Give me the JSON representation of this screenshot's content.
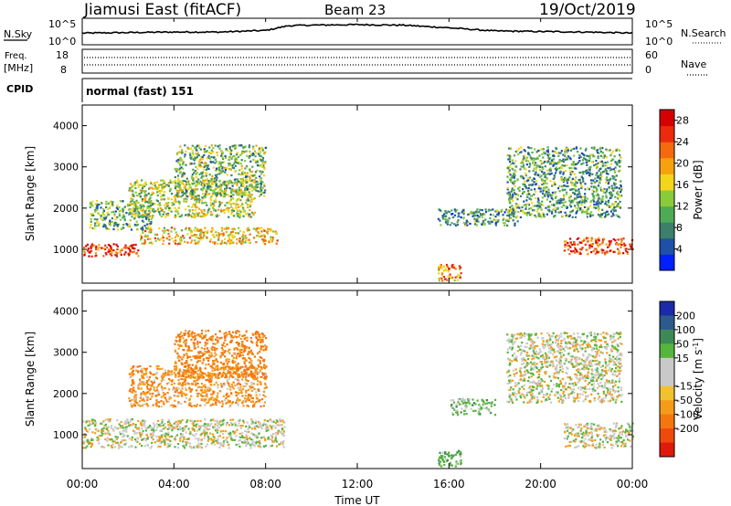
{
  "header": {
    "station": "Jiamusi East (fitACF)",
    "beam": "Beam 23",
    "date": "19/Oct/2019"
  },
  "panels": {
    "nsky": {
      "label": "N.Sky",
      "left_ticks": [
        "10^5",
        "10^0"
      ],
      "right_ticks": [
        "10^5",
        "10^0"
      ],
      "right_label": "N.Search",
      "trace_color": "#000000"
    },
    "freq": {
      "label_line1": "Freq.",
      "label_line2": "[MHz]",
      "left_ticks": [
        "18",
        "8"
      ],
      "right_ticks": [
        "60",
        "0"
      ],
      "right_label": "Nave"
    },
    "cpid": {
      "label": "CPID",
      "text": "normal (fast) 151"
    }
  },
  "axes": {
    "ylabel": "Slant Range [km]",
    "yticks": [
      "4000",
      "3000",
      "2000",
      "1000"
    ],
    "xticks": [
      "00:00",
      "04:00",
      "08:00",
      "12:00",
      "16:00",
      "20:00",
      "00:00"
    ],
    "xlabel": "Time UT"
  },
  "colorbars": {
    "power": {
      "label": "Power [dB]",
      "ticks": [
        "28",
        "24",
        "20",
        "16",
        "12",
        "8",
        "4"
      ],
      "colors": [
        "#0020ff",
        "#1e50a8",
        "#3c7f6a",
        "#4faa55",
        "#8acb3a",
        "#f3d51b",
        "#f6a20e",
        "#f46a0c",
        "#ec2a0c",
        "#d50000"
      ]
    },
    "velocity": {
      "label_main": "Velocity [m s",
      "label_sup": "-1",
      "label_end": "]",
      "ticks": [
        "200",
        "100",
        "50",
        "15",
        "-15",
        "-50",
        "-100",
        "-200"
      ],
      "colors": [
        "#1b2aa8",
        "#2d5a8c",
        "#3e8a57",
        "#56b53c",
        "#c9c9c9",
        "#c9c9c9",
        "#f2c12e",
        "#f49c1a",
        "#f3760f",
        "#ef4a0c",
        "#e01a0a"
      ]
    }
  },
  "chart_data": [
    {
      "type": "line",
      "title": "N.Sky / N.Search",
      "x": [
        0,
        2,
        4,
        6,
        8,
        9,
        10,
        12,
        14,
        16,
        18,
        20,
        22,
        24
      ],
      "series": [
        {
          "values": [
            2.2,
            2.3,
            2.4,
            2.4,
            2.7,
            3.6,
            3.7,
            3.8,
            3.7,
            3.2,
            2.6,
            2.5,
            2.4,
            2.2
          ]
        }
      ],
      "ylim": [
        0,
        5
      ],
      "xlim": [
        0,
        24
      ]
    },
    {
      "type": "heatmap",
      "title": "Power [dB]",
      "xlim": [
        0,
        24
      ],
      "ylim": [
        180,
        4500
      ],
      "regions": [
        {
          "x0": 0.0,
          "x1": 2.5,
          "y0": 850,
          "y1": 1150,
          "value": 26
        },
        {
          "x0": 2.5,
          "x1": 8.5,
          "y0": 1150,
          "y1": 1550,
          "value": 18
        },
        {
          "x0": 0.3,
          "x1": 3.0,
          "y0": 1500,
          "y1": 2200,
          "value": 11
        },
        {
          "x0": 2.0,
          "x1": 7.5,
          "y0": 1800,
          "y1": 2700,
          "value": 14
        },
        {
          "x0": 4.0,
          "x1": 8.0,
          "y0": 2300,
          "y1": 3550,
          "value": 12
        },
        {
          "x0": 15.5,
          "x1": 16.5,
          "y0": 250,
          "y1": 650,
          "value": 20
        },
        {
          "x0": 15.5,
          "x1": 19.0,
          "y0": 1600,
          "y1": 2000,
          "value": 9
        },
        {
          "x0": 18.5,
          "x1": 23.5,
          "y0": 1800,
          "y1": 3500,
          "value": 10
        },
        {
          "x0": 21.0,
          "x1": 24.0,
          "y0": 900,
          "y1": 1300,
          "value": 25
        }
      ]
    },
    {
      "type": "heatmap",
      "title": "Velocity [m s-1]",
      "xlim": [
        0,
        24
      ],
      "ylim": [
        180,
        4500
      ],
      "regions": [
        {
          "x0": 0.0,
          "x1": 8.8,
          "y0": 700,
          "y1": 1400,
          "value": 0
        },
        {
          "x0": 2.0,
          "x1": 8.0,
          "y0": 1700,
          "y1": 2700,
          "value": -40
        },
        {
          "x0": 4.0,
          "x1": 8.0,
          "y0": 2400,
          "y1": 3550,
          "value": -60
        },
        {
          "x0": 15.5,
          "x1": 16.5,
          "y0": 250,
          "y1": 650,
          "value": 40
        },
        {
          "x0": 16.0,
          "x1": 18.0,
          "y0": 1500,
          "y1": 1900,
          "value": 30
        },
        {
          "x0": 18.5,
          "x1": 23.5,
          "y0": 1800,
          "y1": 3500,
          "value": 0
        },
        {
          "x0": 21.0,
          "x1": 24.0,
          "y0": 700,
          "y1": 1300,
          "value": 0
        }
      ]
    }
  ]
}
